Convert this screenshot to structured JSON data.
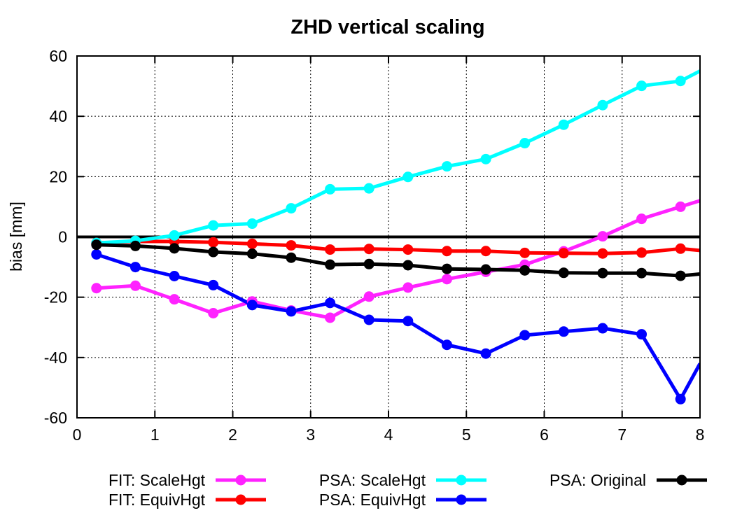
{
  "chart_data": {
    "type": "line",
    "title": "ZHD vertical scaling",
    "xlabel": "",
    "ylabel": "bias [mm]",
    "xlim": [
      0,
      8
    ],
    "ylim": [
      -60,
      60
    ],
    "xticks": [
      0,
      1,
      2,
      3,
      4,
      5,
      6,
      7,
      8
    ],
    "yticks": [
      -60,
      -40,
      -20,
      0,
      20,
      40,
      60
    ],
    "grid": true,
    "zero_line": true,
    "legend_position": "bottom",
    "series": [
      {
        "name": "FIT: ScaleHgt",
        "color": "#ff22ff",
        "x": [
          0.25,
          0.75,
          1.25,
          1.75,
          2.25,
          2.75,
          3.25,
          3.75,
          4.25,
          4.75,
          5.25,
          5.75,
          6.25,
          6.75,
          7.25,
          7.75,
          8.0
        ],
        "y": [
          -17,
          -16.2,
          -20.7,
          -25.3,
          -21.4,
          -24.4,
          -26.8,
          -19.8,
          -16.8,
          -14,
          -11.6,
          -9.2,
          -4.8,
          0.2,
          6,
          10,
          12
        ]
      },
      {
        "name": "FIT: EquivHgt",
        "color": "#ff0000",
        "x": [
          0.25,
          0.75,
          1.25,
          1.75,
          2.25,
          2.75,
          3.25,
          3.75,
          4.25,
          4.75,
          5.25,
          5.75,
          6.25,
          6.75,
          7.25,
          7.75,
          8.0
        ],
        "y": [
          -2,
          -1.5,
          -1.5,
          -1.8,
          -2.3,
          -2.8,
          -4.2,
          -4,
          -4.2,
          -4.7,
          -4.7,
          -5.3,
          -5.4,
          -5.5,
          -5.2,
          -3.9,
          -4.5
        ]
      },
      {
        "name": "PSA: ScaleHgt",
        "color": "#00ffff",
        "x": [
          0.25,
          0.75,
          1.25,
          1.75,
          2.25,
          2.75,
          3.25,
          3.75,
          4.25,
          4.75,
          5.25,
          5.75,
          6.25,
          6.75,
          7.25,
          7.75,
          8.0
        ],
        "y": [
          -2,
          -1.3,
          0.5,
          3.8,
          4.4,
          9.5,
          15.8,
          16.1,
          19.9,
          23.4,
          25.8,
          31.1,
          37.2,
          43.7,
          50.1,
          51.7,
          55
        ]
      },
      {
        "name": "PSA: EquivHgt",
        "color": "#0000ff",
        "x": [
          0.25,
          0.75,
          1.25,
          1.75,
          2.25,
          2.75,
          3.25,
          3.75,
          4.25,
          4.75,
          5.25,
          5.75,
          6.25,
          6.75,
          7.25,
          7.75,
          8.0
        ],
        "y": [
          -5.8,
          -10,
          -13,
          -16,
          -22.6,
          -24.7,
          -21.9,
          -27.5,
          -27.9,
          -35.8,
          -38.7,
          -32.6,
          -31.4,
          -30.3,
          -32.3,
          -53.8,
          -42
        ]
      },
      {
        "name": "PSA: Original",
        "color": "#000000",
        "x": [
          0.25,
          0.75,
          1.25,
          1.75,
          2.25,
          2.75,
          3.25,
          3.75,
          4.25,
          4.75,
          5.25,
          5.75,
          6.25,
          6.75,
          7.25,
          7.75,
          8.0
        ],
        "y": [
          -2.6,
          -3,
          -3.8,
          -5,
          -5.6,
          -6.9,
          -9.2,
          -9,
          -9.4,
          -10.6,
          -10.8,
          -11.1,
          -11.9,
          -12,
          -12,
          -12.9,
          -12.3
        ]
      }
    ]
  }
}
